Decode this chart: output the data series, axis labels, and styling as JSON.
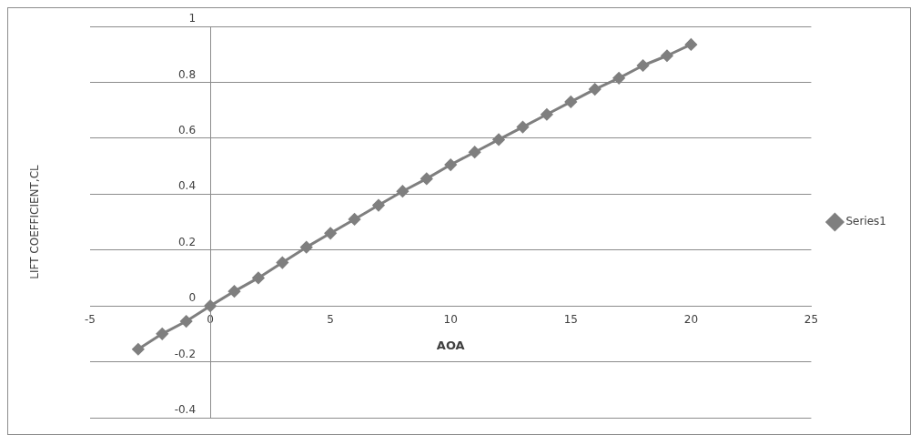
{
  "chart_data": {
    "type": "line",
    "xlabel": "AOA",
    "ylabel": "LIFT COEFFICIENT,CL",
    "xlim": [
      -5,
      25
    ],
    "xticks": [
      -5,
      0,
      5,
      10,
      15,
      20,
      25
    ],
    "ylim": [
      -0.4,
      1
    ],
    "yticks": [
      -0.4,
      -0.2,
      0,
      0.2,
      0.4,
      0.6,
      0.8,
      1
    ],
    "grid": "y",
    "legend": "right",
    "marker": "diamond",
    "line_style": "solid",
    "series": [
      {
        "name": "Series1",
        "color": "#7f7f7f",
        "x": [
          -3,
          -2,
          -1,
          0,
          1,
          2,
          3,
          4,
          5,
          6,
          7,
          8,
          9,
          10,
          11,
          12,
          13,
          14,
          15,
          16,
          17,
          18,
          19,
          20
        ],
        "values": [
          -0.155,
          -0.1,
          -0.055,
          0,
          0.052,
          0.1,
          0.155,
          0.21,
          0.26,
          0.31,
          0.36,
          0.41,
          0.455,
          0.505,
          0.55,
          0.595,
          0.64,
          0.685,
          0.73,
          0.775,
          0.815,
          0.86,
          0.895,
          0.935
        ]
      }
    ]
  }
}
